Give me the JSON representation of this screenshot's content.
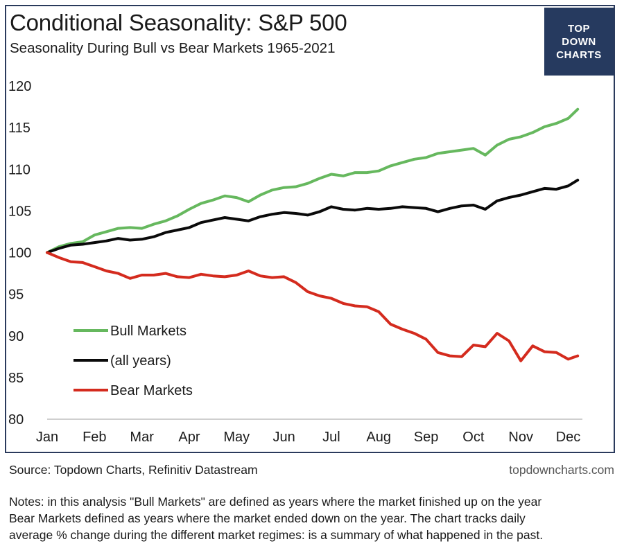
{
  "header": {
    "title": "Conditional Seasonality: S&P 500",
    "subtitle": "Seasonality During Bull vs Bear Markets 1965-2021"
  },
  "logo": {
    "lines": [
      "TOP",
      "DOWN",
      "CHARTS"
    ],
    "bg": "#263a5f"
  },
  "footer": {
    "source": "Source: Topdown Charts, Refinitiv Datastream",
    "website": "topdowncharts.com",
    "notes": [
      "Notes: in this analysis \"Bull Markets\" are defined as years where the market finished up on the year",
      "Bear Markets defined as years where the market ended down on the year.  The chart tracks daily",
      "average % change during the different market regimes: is a summary of what happened in the past."
    ]
  },
  "chart_data": {
    "type": "line",
    "title": "Conditional Seasonality: S&P 500",
    "subtitle": "Seasonality During Bull vs Bear Markets 1965-2021",
    "xlabel": "",
    "ylabel": "",
    "x_ticks": [
      "Jan",
      "Feb",
      "Mar",
      "Apr",
      "May",
      "Jun",
      "Jul",
      "Aug",
      "Sep",
      "Oct",
      "Nov",
      "Dec"
    ],
    "xlim": [
      0,
      11.3
    ],
    "ylim": [
      80,
      120
    ],
    "y_ticks": [
      80,
      85,
      90,
      95,
      100,
      105,
      110,
      115,
      120
    ],
    "grid": false,
    "legend": "lower-left",
    "series": [
      {
        "name": "Bull Markets",
        "color": "#66b85e",
        "x": [
          0,
          0.25,
          0.5,
          0.75,
          1,
          1.25,
          1.5,
          1.75,
          2,
          2.25,
          2.5,
          2.75,
          3,
          3.25,
          3.5,
          3.75,
          4,
          4.25,
          4.5,
          4.75,
          5,
          5.25,
          5.5,
          5.75,
          6,
          6.25,
          6.5,
          6.75,
          7,
          7.25,
          7.5,
          7.75,
          8,
          8.25,
          8.5,
          8.75,
          9,
          9.25,
          9.5,
          9.75,
          10,
          10.25,
          10.5,
          10.75,
          11,
          11.2
        ],
        "values": [
          100,
          100.7,
          101.1,
          101.3,
          102.1,
          102.5,
          102.9,
          103.0,
          102.9,
          103.4,
          103.8,
          104.4,
          105.2,
          105.9,
          106.3,
          106.8,
          106.6,
          106.1,
          106.9,
          107.5,
          107.8,
          107.9,
          108.3,
          108.9,
          109.4,
          109.2,
          109.6,
          109.6,
          109.8,
          110.4,
          110.8,
          111.2,
          111.4,
          111.9,
          112.1,
          112.3,
          112.5,
          111.7,
          112.9,
          113.6,
          113.9,
          114.4,
          115.1,
          115.5,
          116.1,
          117.2
        ]
      },
      {
        "name": "(all years)",
        "color": "#0a0a0a",
        "x": [
          0,
          0.25,
          0.5,
          0.75,
          1,
          1.25,
          1.5,
          1.75,
          2,
          2.25,
          2.5,
          2.75,
          3,
          3.25,
          3.5,
          3.75,
          4,
          4.25,
          4.5,
          4.75,
          5,
          5.25,
          5.5,
          5.75,
          6,
          6.25,
          6.5,
          6.75,
          7,
          7.25,
          7.5,
          7.75,
          8,
          8.25,
          8.5,
          8.75,
          9,
          9.25,
          9.5,
          9.75,
          10,
          10.25,
          10.5,
          10.75,
          11,
          11.2
        ],
        "values": [
          100,
          100.5,
          100.9,
          101.0,
          101.2,
          101.4,
          101.7,
          101.5,
          101.6,
          101.9,
          102.4,
          102.7,
          103.0,
          103.6,
          103.9,
          104.2,
          104.0,
          103.8,
          104.3,
          104.6,
          104.8,
          104.7,
          104.5,
          104.9,
          105.5,
          105.2,
          105.1,
          105.3,
          105.2,
          105.3,
          105.5,
          105.4,
          105.3,
          104.9,
          105.3,
          105.6,
          105.7,
          105.2,
          106.2,
          106.6,
          106.9,
          107.3,
          107.7,
          107.6,
          108.0,
          108.7
        ]
      },
      {
        "name": "Bear Markets",
        "color": "#d42b1e",
        "x": [
          0,
          0.25,
          0.5,
          0.75,
          1,
          1.25,
          1.5,
          1.75,
          2,
          2.25,
          2.5,
          2.75,
          3,
          3.25,
          3.5,
          3.75,
          4,
          4.25,
          4.5,
          4.75,
          5,
          5.25,
          5.5,
          5.75,
          6,
          6.25,
          6.5,
          6.75,
          7,
          7.25,
          7.5,
          7.75,
          8,
          8.25,
          8.5,
          8.75,
          9,
          9.25,
          9.5,
          9.75,
          10,
          10.25,
          10.5,
          10.75,
          11,
          11.2
        ],
        "values": [
          100,
          99.4,
          98.9,
          98.8,
          98.3,
          97.8,
          97.5,
          96.9,
          97.3,
          97.3,
          97.5,
          97.1,
          97.0,
          97.4,
          97.2,
          97.1,
          97.3,
          97.8,
          97.2,
          97.0,
          97.1,
          96.4,
          95.3,
          94.8,
          94.5,
          93.9,
          93.6,
          93.5,
          92.9,
          91.4,
          90.8,
          90.3,
          89.6,
          88.0,
          87.6,
          87.5,
          88.9,
          88.7,
          90.3,
          89.4,
          87.0,
          88.8,
          88.1,
          88.0,
          87.2,
          87.6
        ]
      }
    ]
  }
}
